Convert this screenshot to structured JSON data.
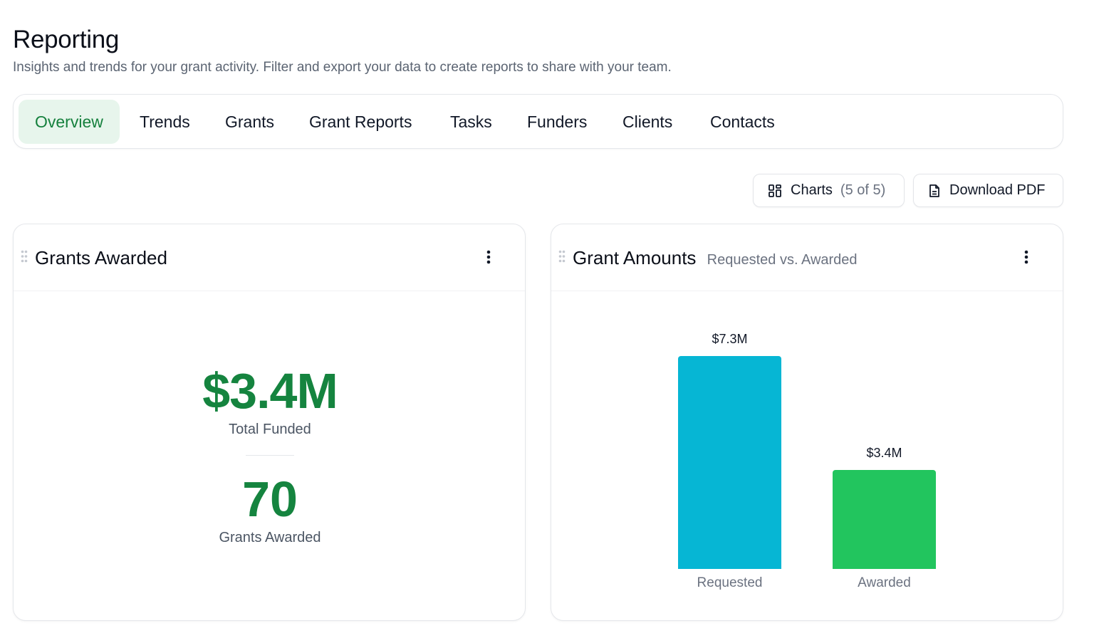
{
  "header": {
    "title": "Reporting",
    "subtitle": "Insights and trends for your grant activity. Filter and export your data to create reports to share with your team."
  },
  "tabs": [
    {
      "label": "Overview",
      "active": true
    },
    {
      "label": "Trends",
      "active": false
    },
    {
      "label": "Grants",
      "active": false
    },
    {
      "label": "Grant Reports",
      "active": false
    },
    {
      "label": "Tasks",
      "active": false
    },
    {
      "label": "Funders",
      "active": false
    },
    {
      "label": "Clients",
      "active": false
    },
    {
      "label": "Contacts",
      "active": false
    }
  ],
  "toolbar": {
    "charts_label": "Charts",
    "charts_count": "(5 of 5)",
    "charts_icon": "grid-icon",
    "download_label": "Download PDF",
    "download_icon": "document-icon"
  },
  "grants_awarded_card": {
    "title": "Grants Awarded",
    "total_funded_value": "$3.4M",
    "total_funded_label": "Total Funded",
    "grants_count_value": "70",
    "grants_count_label": "Grants Awarded"
  },
  "grant_amounts_card": {
    "title": "Grant Amounts",
    "subtitle": "Requested vs. Awarded"
  },
  "colors": {
    "accent_green": "#15843f",
    "active_tab_bg": "#e7f5ec",
    "requested_bar": "#06b6d4",
    "awarded_bar": "#22c55e"
  },
  "chart_data": {
    "type": "bar",
    "categories": [
      "Requested",
      "Awarded"
    ],
    "values": [
      7.3,
      3.4
    ],
    "value_labels": [
      "$7.3M",
      "$3.4M"
    ],
    "colors": [
      "#06b6d4",
      "#22c55e"
    ],
    "title": "Grant Amounts",
    "subtitle": "Requested vs. Awarded",
    "ylim": [
      0,
      7.3
    ],
    "grid": false
  }
}
